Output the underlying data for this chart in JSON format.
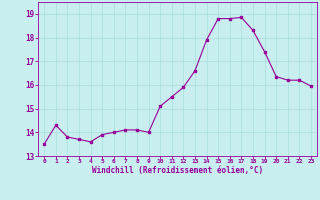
{
  "x": [
    0,
    1,
    2,
    3,
    4,
    5,
    6,
    7,
    8,
    9,
    10,
    11,
    12,
    13,
    14,
    15,
    16,
    17,
    18,
    19,
    20,
    21,
    22,
    23
  ],
  "y": [
    13.5,
    14.3,
    13.8,
    13.7,
    13.6,
    13.9,
    14.0,
    14.1,
    14.1,
    14.0,
    15.1,
    15.5,
    15.9,
    16.6,
    17.9,
    18.8,
    18.8,
    18.85,
    18.3,
    17.4,
    16.35,
    16.2,
    16.2,
    15.95
  ],
  "line_color": "#990099",
  "marker": "s",
  "marker_size": 2,
  "bg_color": "#c8eef0",
  "grid_color": "#aadddd",
  "xlabel": "Windchill (Refroidissement éolien,°C)",
  "xlabel_color": "#990099",
  "tick_color": "#990099",
  "label_color": "#990099",
  "ylim": [
    13,
    19.5
  ],
  "yticks": [
    13,
    14,
    15,
    16,
    17,
    18,
    19
  ],
  "xlim": [
    -0.5,
    23.5
  ],
  "xticks": [
    0,
    1,
    2,
    3,
    4,
    5,
    6,
    7,
    8,
    9,
    10,
    11,
    12,
    13,
    14,
    15,
    16,
    17,
    18,
    19,
    20,
    21,
    22,
    23
  ],
  "xtick_labels": [
    "0",
    "1",
    "2",
    "3",
    "4",
    "5",
    "6",
    "7",
    "8",
    "9",
    "10",
    "11",
    "12",
    "13",
    "14",
    "15",
    "16",
    "17",
    "18",
    "19",
    "20",
    "21",
    "22",
    "23"
  ]
}
